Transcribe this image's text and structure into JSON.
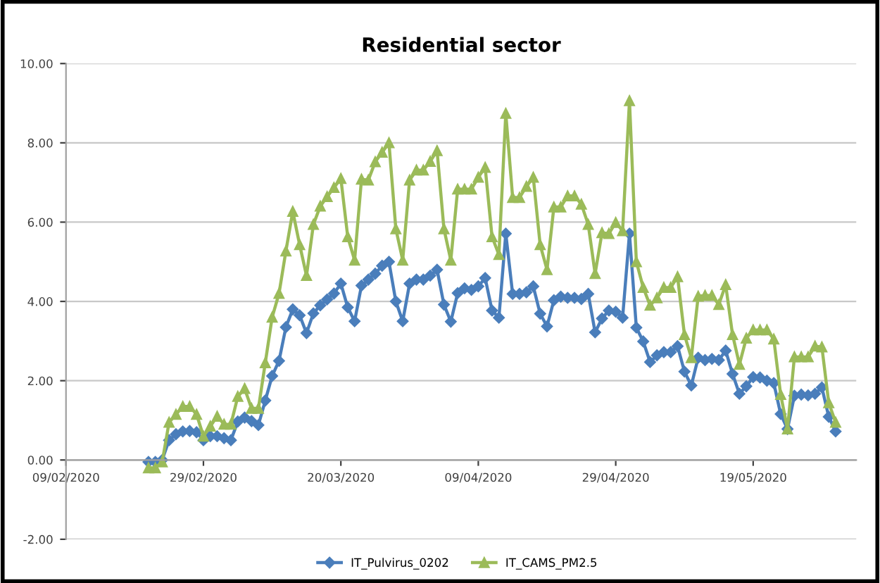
{
  "chart_data": {
    "type": "line",
    "title": "Residential sector",
    "x": [
      "2020-02-21",
      "2020-02-22",
      "2020-02-23",
      "2020-02-24",
      "2020-02-25",
      "2020-02-26",
      "2020-02-27",
      "2020-02-28",
      "2020-02-29",
      "2020-03-01",
      "2020-03-02",
      "2020-03-03",
      "2020-03-04",
      "2020-03-05",
      "2020-03-06",
      "2020-03-07",
      "2020-03-08",
      "2020-03-09",
      "2020-03-10",
      "2020-03-11",
      "2020-03-12",
      "2020-03-13",
      "2020-03-14",
      "2020-03-15",
      "2020-03-16",
      "2020-03-17",
      "2020-03-18",
      "2020-03-19",
      "2020-03-20",
      "2020-03-21",
      "2020-03-22",
      "2020-03-23",
      "2020-03-24",
      "2020-03-25",
      "2020-03-26",
      "2020-03-27",
      "2020-03-28",
      "2020-03-29",
      "2020-03-30",
      "2020-03-31",
      "2020-04-01",
      "2020-04-02",
      "2020-04-03",
      "2020-04-04",
      "2020-04-05",
      "2020-04-06",
      "2020-04-07",
      "2020-04-08",
      "2020-04-09",
      "2020-04-10",
      "2020-04-11",
      "2020-04-12",
      "2020-04-13",
      "2020-04-14",
      "2020-04-15",
      "2020-04-16",
      "2020-04-17",
      "2020-04-18",
      "2020-04-19",
      "2020-04-20",
      "2020-04-21",
      "2020-04-22",
      "2020-04-23",
      "2020-04-24",
      "2020-04-25",
      "2020-04-26",
      "2020-04-27",
      "2020-04-28",
      "2020-04-29",
      "2020-04-30",
      "2020-05-01",
      "2020-05-02",
      "2020-05-03",
      "2020-05-04",
      "2020-05-05",
      "2020-05-06",
      "2020-05-07",
      "2020-05-08",
      "2020-05-09",
      "2020-05-10",
      "2020-05-11",
      "2020-05-12",
      "2020-05-13",
      "2020-05-14",
      "2020-05-15",
      "2020-05-16",
      "2020-05-17",
      "2020-05-18",
      "2020-05-19",
      "2020-05-20",
      "2020-05-21",
      "2020-05-22",
      "2020-05-23",
      "2020-05-24",
      "2020-05-25",
      "2020-05-26",
      "2020-05-27",
      "2020-05-28",
      "2020-05-29",
      "2020-05-30",
      "2020-05-31"
    ],
    "series": [
      {
        "name": "IT_Pulvirus_0202",
        "color": "#4a7ebb",
        "marker": "diamond",
        "values": [
          -0.05,
          -0.05,
          0.0,
          0.5,
          0.65,
          0.72,
          0.73,
          0.7,
          0.5,
          0.6,
          0.6,
          0.55,
          0.5,
          0.97,
          1.07,
          0.98,
          0.88,
          1.5,
          2.12,
          2.5,
          3.35,
          3.8,
          3.65,
          3.2,
          3.7,
          3.9,
          4.05,
          4.2,
          4.45,
          3.85,
          3.5,
          4.4,
          4.55,
          4.7,
          4.9,
          5.0,
          4.0,
          3.5,
          4.45,
          4.55,
          4.55,
          4.65,
          4.8,
          3.92,
          3.49,
          4.21,
          4.33,
          4.29,
          4.38,
          4.59,
          3.77,
          3.59,
          5.71,
          4.19,
          4.19,
          4.23,
          4.38,
          3.69,
          3.37,
          4.03,
          4.12,
          4.09,
          4.09,
          4.06,
          4.19,
          3.22,
          3.57,
          3.77,
          3.74,
          3.59,
          5.71,
          3.34,
          2.99,
          2.47,
          2.64,
          2.72,
          2.72,
          2.87,
          2.23,
          1.88,
          2.58,
          2.52,
          2.55,
          2.52,
          2.76,
          2.17,
          1.67,
          1.86,
          2.09,
          2.08,
          2.0,
          1.94,
          1.16,
          0.78,
          1.62,
          1.65,
          1.63,
          1.67,
          1.83,
          1.09,
          0.72
        ]
      },
      {
        "name": "IT_CAMS_PM2.5",
        "color": "#9bbb59",
        "marker": "triangle",
        "values": [
          -0.2,
          -0.2,
          -0.05,
          0.95,
          1.15,
          1.35,
          1.35,
          1.15,
          0.6,
          0.85,
          1.1,
          0.9,
          0.9,
          1.6,
          1.8,
          1.3,
          1.3,
          2.45,
          3.6,
          4.2,
          5.27,
          6.27,
          5.43,
          4.65,
          5.94,
          6.4,
          6.64,
          6.87,
          7.1,
          5.63,
          5.04,
          7.08,
          7.06,
          7.52,
          7.76,
          8.0,
          5.83,
          5.04,
          7.06,
          7.31,
          7.31,
          7.53,
          7.8,
          5.83,
          5.04,
          6.83,
          6.83,
          6.83,
          7.13,
          7.38,
          5.63,
          5.18,
          8.74,
          6.62,
          6.62,
          6.9,
          7.13,
          5.43,
          4.8,
          6.38,
          6.38,
          6.66,
          6.66,
          6.45,
          5.94,
          4.7,
          5.73,
          5.71,
          5.99,
          5.78,
          9.06,
          5.0,
          4.35,
          3.9,
          4.09,
          4.35,
          4.35,
          4.62,
          3.16,
          2.58,
          4.13,
          4.15,
          4.15,
          3.92,
          4.42,
          3.16,
          2.41,
          3.07,
          3.28,
          3.28,
          3.28,
          3.05,
          1.65,
          0.78,
          2.6,
          2.6,
          2.6,
          2.87,
          2.85,
          1.44,
          0.95
        ]
      }
    ],
    "xlim": [
      "2020-02-09",
      "2020-06-03"
    ],
    "xticks": [
      {
        "value": "2020-02-09",
        "label": "09/02/2020"
      },
      {
        "value": "2020-02-29",
        "label": "29/02/2020"
      },
      {
        "value": "2020-03-20",
        "label": "20/03/2020"
      },
      {
        "value": "2020-04-09",
        "label": "09/04/2020"
      },
      {
        "value": "2020-04-29",
        "label": "29/04/2020"
      },
      {
        "value": "2020-05-19",
        "label": "19/05/2020"
      }
    ],
    "ylim": [
      -2,
      10
    ],
    "yticks": [
      {
        "value": -2,
        "label": "-2.00"
      },
      {
        "value": 0,
        "label": "0.00"
      },
      {
        "value": 2,
        "label": "2.00"
      },
      {
        "value": 4,
        "label": "4.00"
      },
      {
        "value": 6,
        "label": "6.00"
      },
      {
        "value": 8,
        "label": "8.00"
      },
      {
        "value": 10,
        "label": "10.00"
      }
    ],
    "grid": "y",
    "legend": "bottom",
    "line_style": "solid"
  }
}
